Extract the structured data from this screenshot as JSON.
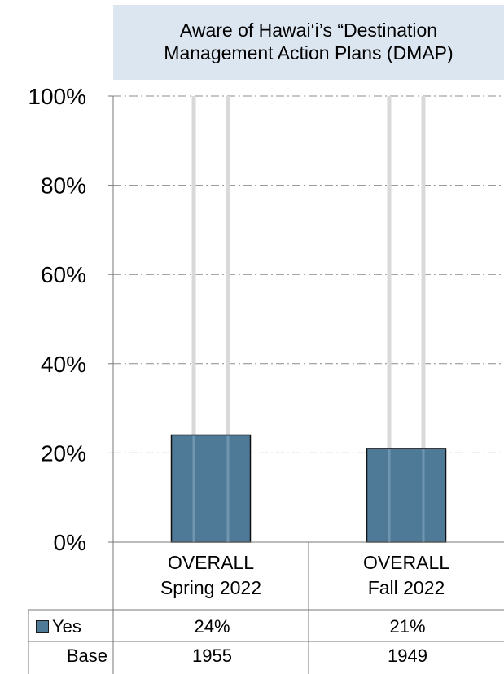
{
  "title_lines": [
    "Aware of Hawai‘i’s “Destination",
    "Management Action Plans (DMAP)"
  ],
  "chart_data": {
    "type": "bar",
    "title": "Aware of Hawai‘i’s “Destination Management Action Plans (DMAP)",
    "categories": [
      [
        "OVERALL",
        "Spring 2022"
      ],
      [
        "OVERALL",
        "Fall 2022"
      ]
    ],
    "series": [
      {
        "name": "Yes",
        "values": [
          24,
          21
        ]
      }
    ],
    "yticks": [
      "0%",
      "20%",
      "40%",
      "60%",
      "80%",
      "100%"
    ],
    "ylim": [
      0,
      100
    ],
    "grid": true,
    "bar_color": "#4e7a98",
    "legend": "in data table"
  },
  "table": {
    "rows": [
      {
        "label": "Yes",
        "values": [
          "24%",
          "21%"
        ],
        "marker": true
      },
      {
        "label": "Base",
        "values": [
          "1955",
          "1949"
        ],
        "marker": false
      }
    ]
  }
}
